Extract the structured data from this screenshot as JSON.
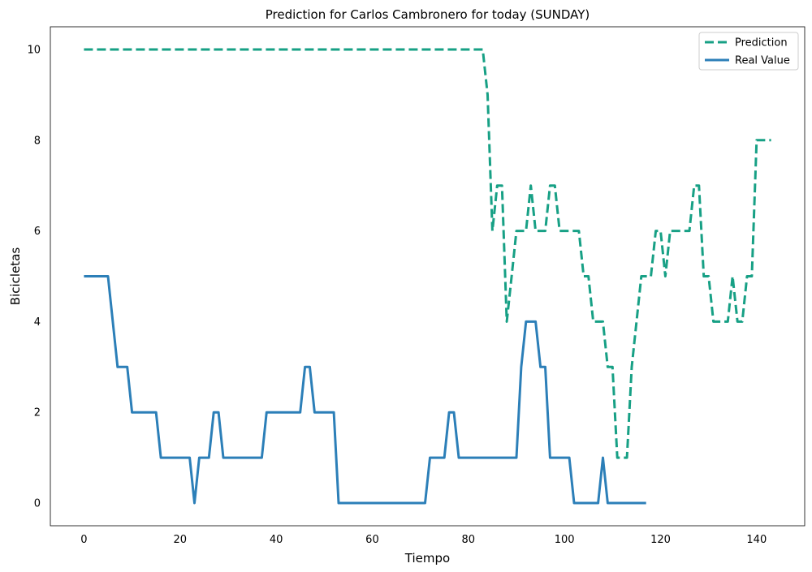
{
  "chart_data": {
    "type": "line",
    "title": "Prediction for Carlos Cambronero for today (SUNDAY)",
    "xlabel": "Tiempo",
    "ylabel": "Bicicletas",
    "xlim": [
      -7,
      150
    ],
    "ylim": [
      -0.5,
      10.5
    ],
    "xticks": [
      0,
      20,
      40,
      60,
      80,
      100,
      120,
      140
    ],
    "yticks": [
      0,
      2,
      4,
      6,
      8,
      10
    ],
    "grid": false,
    "legend_position": "top-right",
    "series": [
      {
        "name": "Prediction",
        "style": "dashed",
        "color": "#17a085",
        "x": [
          0,
          83,
          84,
          85,
          86,
          87,
          88,
          89,
          90,
          91,
          92,
          93,
          94,
          95,
          96,
          97,
          98,
          99,
          100,
          101,
          102,
          103,
          104,
          105,
          106,
          107,
          108,
          109,
          110,
          111,
          112,
          113,
          114,
          115,
          116,
          117,
          118,
          119,
          120,
          121,
          122,
          123,
          124,
          125,
          126,
          127,
          128,
          129,
          130,
          131,
          132,
          133,
          134,
          135,
          136,
          137,
          138,
          139,
          140,
          141,
          142,
          143
        ],
        "y": [
          10,
          10,
          9,
          6,
          7,
          7,
          4,
          5,
          6,
          6,
          6,
          7,
          6,
          6,
          6,
          7,
          7,
          6,
          6,
          6,
          6,
          6,
          5,
          5,
          4,
          4,
          4,
          3,
          3,
          1,
          1,
          1,
          3,
          4,
          5,
          5,
          5,
          6,
          6,
          5,
          6,
          6,
          6,
          6,
          6,
          7,
          7,
          5,
          5,
          4,
          4,
          4,
          4,
          5,
          4,
          4,
          5,
          5,
          8,
          8,
          8,
          8
        ]
      },
      {
        "name": "Real Value",
        "style": "solid",
        "color": "#2c7fb8",
        "x": [
          0,
          1,
          2,
          3,
          4,
          5,
          6,
          7,
          8,
          9,
          10,
          11,
          12,
          13,
          14,
          15,
          16,
          17,
          18,
          19,
          20,
          21,
          22,
          23,
          24,
          25,
          26,
          27,
          28,
          29,
          30,
          31,
          32,
          33,
          34,
          35,
          36,
          37,
          38,
          39,
          40,
          41,
          42,
          43,
          44,
          45,
          46,
          47,
          48,
          49,
          50,
          51,
          52,
          53,
          54,
          55,
          56,
          57,
          58,
          59,
          60,
          61,
          62,
          63,
          64,
          65,
          66,
          67,
          68,
          69,
          70,
          71,
          72,
          73,
          74,
          75,
          76,
          77,
          78,
          79,
          80,
          81,
          82,
          83,
          84,
          85,
          86,
          87,
          88,
          89,
          90,
          91,
          92,
          93,
          94,
          95,
          96,
          97,
          98,
          99,
          100,
          101,
          102,
          103,
          104,
          105,
          106,
          107,
          108,
          109,
          110,
          111,
          112,
          113,
          114,
          115,
          116,
          117
        ],
        "y": [
          5,
          5,
          5,
          5,
          5,
          5,
          4,
          3,
          3,
          3,
          2,
          2,
          2,
          2,
          2,
          2,
          1,
          1,
          1,
          1,
          1,
          1,
          1,
          0,
          1,
          1,
          1,
          2,
          2,
          1,
          1,
          1,
          1,
          1,
          1,
          1,
          1,
          1,
          2,
          2,
          2,
          2,
          2,
          2,
          2,
          2,
          3,
          3,
          2,
          2,
          2,
          2,
          2,
          0,
          0,
          0,
          0,
          0,
          0,
          0,
          0,
          0,
          0,
          0,
          0,
          0,
          0,
          0,
          0,
          0,
          0,
          0,
          1,
          1,
          1,
          1,
          2,
          2,
          1,
          1,
          1,
          1,
          1,
          1,
          1,
          1,
          1,
          1,
          1,
          1,
          1,
          3,
          4,
          4,
          4,
          3,
          3,
          1,
          1,
          1,
          1,
          1,
          0,
          0,
          0,
          0,
          0,
          0,
          1,
          0,
          0,
          0,
          0,
          0,
          0,
          0,
          0,
          0
        ]
      }
    ]
  }
}
